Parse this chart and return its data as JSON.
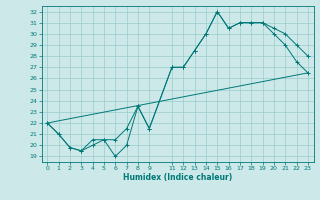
{
  "xlabel": "Humidex (Indice chaleur)",
  "ylabel": "",
  "bg_color": "#cce8e8",
  "line_color": "#007878",
  "grid_color": "#99cccc",
  "xlim": [
    -0.5,
    23.5
  ],
  "ylim": [
    18.5,
    32.5
  ],
  "yticks": [
    19,
    20,
    21,
    22,
    23,
    24,
    25,
    26,
    27,
    28,
    29,
    30,
    31,
    32
  ],
  "xticks": [
    0,
    1,
    2,
    3,
    4,
    5,
    6,
    7,
    8,
    9,
    11,
    12,
    13,
    14,
    15,
    16,
    17,
    18,
    19,
    20,
    21,
    22,
    23
  ],
  "line1_x": [
    0,
    1,
    2,
    3,
    4,
    5,
    6,
    7,
    8,
    9,
    11,
    12,
    13,
    14,
    15,
    16,
    17,
    18,
    19,
    20,
    21,
    22,
    23
  ],
  "line1_y": [
    22,
    21,
    19.8,
    19.5,
    20,
    20.5,
    19,
    20,
    23.5,
    21.5,
    27,
    27,
    28.5,
    30,
    32,
    30.5,
    31,
    31,
    31,
    30,
    29,
    27.5,
    26.5
  ],
  "line2_x": [
    0,
    1,
    2,
    3,
    4,
    5,
    6,
    7,
    8,
    9,
    11,
    12,
    13,
    14,
    15,
    16,
    17,
    18,
    19,
    20,
    21,
    22,
    23
  ],
  "line2_y": [
    22,
    21,
    19.8,
    19.5,
    20.5,
    20.5,
    20.5,
    21.5,
    23.5,
    21.5,
    27,
    27,
    28.5,
    30,
    32,
    30.5,
    31,
    31,
    31,
    30.5,
    30,
    29,
    28
  ],
  "line3_x": [
    0,
    23
  ],
  "line3_y": [
    22,
    26.5
  ]
}
